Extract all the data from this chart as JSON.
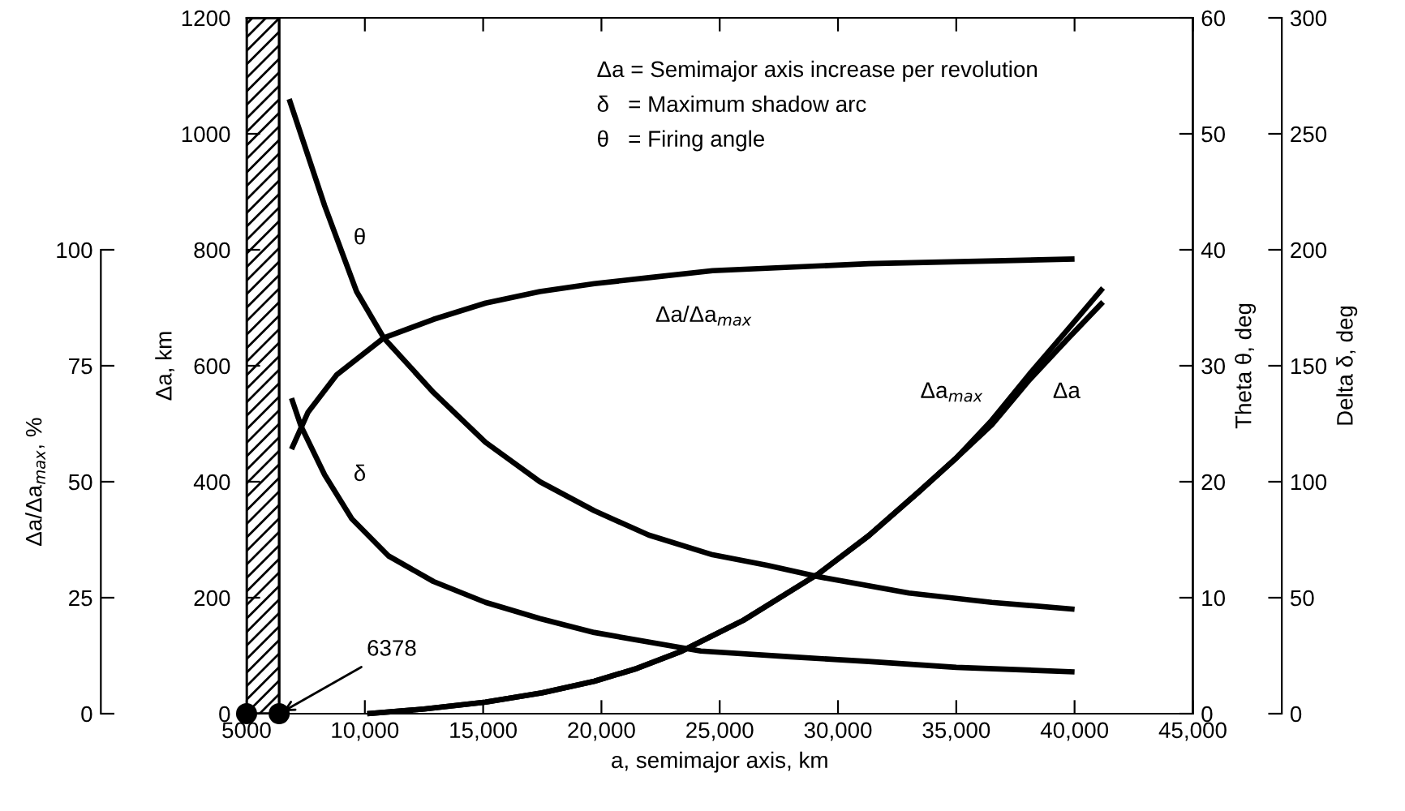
{
  "chart_data": [
    {
      "type": "line",
      "xlabel": "a, semimajor axis, km",
      "ylabel": "Δa, km",
      "y2label": "Theta θ, deg",
      "y3label": "Delta δ, deg",
      "xlim": [
        5000,
        45000
      ],
      "xticks": [
        5000,
        {
          "value": 10000,
          "label": "10,000"
        },
        {
          "value": 15000,
          "label": "15,000"
        },
        {
          "value": 20000,
          "label": "20,000"
        },
        {
          "value": 25000,
          "label": "25,000"
        },
        {
          "value": 30000,
          "label": "30,000"
        },
        {
          "value": 35000,
          "label": "35,000"
        },
        {
          "value": 40000,
          "label": "40,000"
        },
        {
          "value": 45000,
          "label": "45,000"
        }
      ],
      "ylim": [
        0,
        1200
      ],
      "yticks": [
        0,
        200,
        400,
        600,
        800,
        1000,
        1200
      ],
      "y2lim": [
        0,
        60
      ],
      "y2ticks": [
        0,
        10,
        20,
        30,
        40,
        50,
        60
      ],
      "y3lim": [
        0,
        300
      ],
      "y3ticks": [
        0,
        50,
        100,
        150,
        200,
        250,
        300
      ],
      "grid": false,
      "legend": false,
      "line_style": "solid",
      "marker": "none",
      "series": [
        {
          "name": "θ",
          "axis": "y2",
          "color": "#000000",
          "x": [
            6800,
            8300,
            9650,
            10800,
            12900,
            15100,
            17400,
            19700,
            22000,
            24700,
            27000,
            29200,
            33000,
            36500,
            40000
          ],
          "values": [
            53,
            43.8,
            36.4,
            32.4,
            27.7,
            23.4,
            20,
            17.5,
            15.4,
            13.7,
            12.8,
            11.8,
            10.4,
            9.6,
            9
          ]
        },
        {
          "name": "δ",
          "axis": "y3",
          "color": "#000000",
          "x": [
            6900,
            7300,
            8300,
            9450,
            11000,
            12900,
            15100,
            17400,
            19700,
            24200,
            28000,
            31300,
            35000,
            40000
          ],
          "values": [
            136,
            124,
            103,
            84,
            68,
            57,
            48,
            41,
            35,
            27,
            24.5,
            22.5,
            20,
            18
          ]
        },
        {
          "name": "Δa$_{max}$",
          "color": "#000000",
          "x": [
            10100,
            12500,
            15100,
            17500,
            19700,
            21500,
            23400,
            26000,
            29200,
            31300,
            33400,
            35000,
            36500,
            38100,
            39700,
            41200
          ],
          "values": [
            0,
            8,
            20,
            36,
            56,
            78,
            108,
            161,
            242,
            307,
            382,
            441,
            506,
            586,
            662,
            734
          ]
        },
        {
          "name": "Δa",
          "color": "#000000",
          "x": [
            10100,
            12500,
            15100,
            17500,
            19700,
            21500,
            23400,
            26000,
            29200,
            31300,
            33400,
            35000,
            36500,
            38100,
            39700,
            41200
          ],
          "values": [
            0,
            8,
            20,
            36,
            56,
            78,
            108,
            161,
            242,
            307,
            382,
            441,
            498,
            576,
            646,
            710
          ]
        },
        {
          "type": "scatter",
          "color": "#000000",
          "marker": "circle",
          "x": [
            5000,
            6378
          ],
          "values": [
            0,
            0
          ]
        }
      ],
      "bands": [
        {
          "axis": "x",
          "from": 5000,
          "to": 6378,
          "color": "#000000"
        }
      ],
      "annotations": [
        "Δa = Semimajor axis increase per revolution",
        "δ   = Maximum shadow arc",
        "θ   = Firing angle",
        {
          "text": "6378",
          "x": 6378,
          "y": 0
        }
      ]
    },
    {
      "type": "line",
      "ylabel": "Δa/Δa$_{max}$, %",
      "xlim": [
        5000,
        45000
      ],
      "ylim": [
        0,
        100
      ],
      "yticks": [
        0,
        25,
        50,
        75,
        100
      ],
      "tick_labels": "y",
      "grid": false,
      "legend": false,
      "series": [
        {
          "name": "Δa/Δa$_{max}$",
          "color": "#000000",
          "x": [
            6900,
            7600,
            8800,
            10800,
            12900,
            15100,
            17400,
            19700,
            22000,
            24700,
            31300,
            40000
          ],
          "values": [
            57,
            65,
            73,
            81,
            85,
            88.5,
            91,
            92.7,
            94,
            95.5,
            97,
            98
          ]
        }
      ]
    }
  ]
}
